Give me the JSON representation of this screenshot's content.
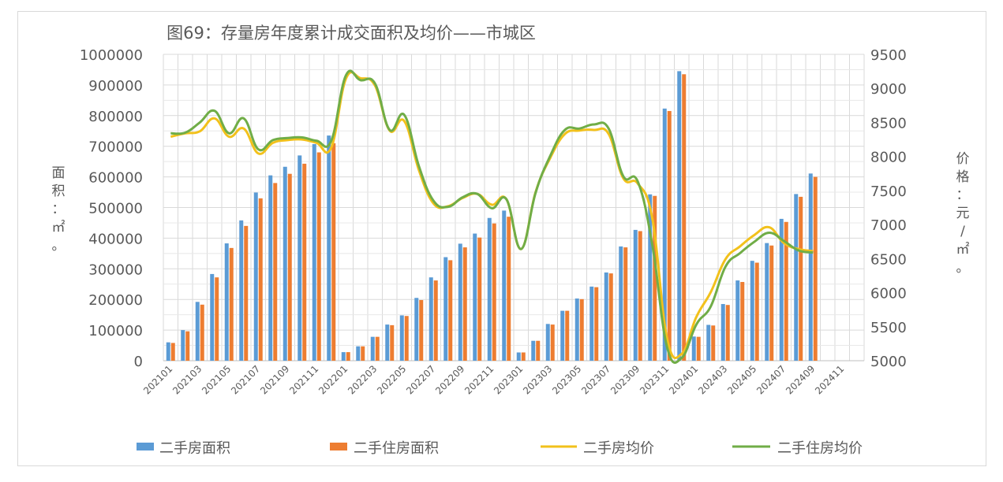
{
  "chart_data": {
    "type": "bar",
    "title": "图69：存量房年度累计成交面积及均价——市城区",
    "ylabel": "面积：㎡。",
    "y2label": "价格：元/㎡。",
    "ylim": [
      0,
      1000000
    ],
    "y2lim": [
      5000,
      9500
    ],
    "yticks": [
      "0",
      "100000",
      "200000",
      "300000",
      "400000",
      "500000",
      "600000",
      "700000",
      "800000",
      "900000",
      "1000000"
    ],
    "y2ticks": [
      "5000",
      "5500",
      "6000",
      "6500",
      "7000",
      "7500",
      "8000",
      "8500",
      "9000",
      "9500"
    ],
    "xtick_labels": [
      "202101",
      "202103",
      "202105",
      "202107",
      "202109",
      "202111",
      "202201",
      "202203",
      "202205",
      "202207",
      "202209",
      "202211",
      "202301",
      "202303",
      "202305",
      "202307",
      "202309",
      "202311",
      "202401",
      "202403",
      "202405",
      "202407",
      "202409",
      "202411"
    ],
    "categories": [
      "202101",
      "202102",
      "202103",
      "202104",
      "202105",
      "202106",
      "202107",
      "202108",
      "202109",
      "202110",
      "202111",
      "202112",
      "202201",
      "202202",
      "202203",
      "202204",
      "202205",
      "202206",
      "202207",
      "202208",
      "202209",
      "202210",
      "202211",
      "202212",
      "202301",
      "202302",
      "202303",
      "202304",
      "202305",
      "202306",
      "202307",
      "202308",
      "202309",
      "202310",
      "202311",
      "202312",
      "202401",
      "202402",
      "202403",
      "202404",
      "202405",
      "202406",
      "202407",
      "202408",
      "202409",
      "202410",
      "202411",
      "202412"
    ],
    "grid": true,
    "legend": "bottom",
    "colors": {
      "bar1": "#5b9bd5",
      "bar2": "#ed7d31",
      "line1": "#f2c11b",
      "line2": "#70ad47"
    },
    "series": [
      {
        "name": "二手房面积",
        "type": "bar",
        "axis": "left",
        "values": [
          60000,
          100000,
          192000,
          283000,
          383000,
          458000,
          549000,
          605000,
          633000,
          670000,
          707000,
          735000,
          28000,
          47000,
          78000,
          118000,
          148000,
          205000,
          272000,
          338000,
          382000,
          415000,
          466000,
          490000,
          27000,
          65000,
          120000,
          163000,
          203000,
          242000,
          288000,
          373000,
          427000,
          543000,
          823000,
          945000,
          79000,
          117000,
          185000,
          262000,
          326000,
          384000,
          463000,
          544000,
          611000,
          null,
          null,
          null
        ]
      },
      {
        "name": "二手住房面积",
        "type": "bar",
        "axis": "left",
        "values": [
          58000,
          96000,
          183000,
          272000,
          368000,
          440000,
          530000,
          580000,
          610000,
          643000,
          680000,
          710000,
          28000,
          47000,
          78000,
          116000,
          146000,
          198000,
          262000,
          328000,
          370000,
          402000,
          448000,
          470000,
          27000,
          65000,
          118000,
          163000,
          201000,
          240000,
          285000,
          370000,
          423000,
          538000,
          815000,
          935000,
          78000,
          115000,
          182000,
          257000,
          320000,
          376000,
          453000,
          535000,
          600000,
          null,
          null,
          null
        ]
      },
      {
        "name": "二手房均价",
        "type": "line",
        "axis": "right",
        "values": [
          8290,
          8340,
          8370,
          8560,
          8290,
          8410,
          8045,
          8200,
          8240,
          8250,
          8200,
          8130,
          9140,
          9150,
          9040,
          8380,
          8520,
          7800,
          7310,
          7270,
          7390,
          7450,
          7290,
          7370,
          6640,
          7480,
          7980,
          8330,
          8380,
          8390,
          8330,
          7680,
          7600,
          7080,
          5330,
          5100,
          5640,
          6010,
          6490,
          6680,
          6850,
          6960,
          6730,
          6640,
          6610,
          null,
          null,
          null
        ]
      },
      {
        "name": "二手住房均价",
        "type": "line",
        "axis": "right",
        "values": [
          8340,
          8350,
          8500,
          8670,
          8340,
          8560,
          8105,
          8240,
          8270,
          8280,
          8230,
          8230,
          9190,
          9120,
          9070,
          8390,
          8610,
          7860,
          7350,
          7260,
          7400,
          7450,
          7240,
          7370,
          6640,
          7470,
          8010,
          8390,
          8410,
          8470,
          8410,
          7710,
          7630,
          6690,
          5200,
          5040,
          5530,
          5800,
          6380,
          6580,
          6750,
          6880,
          6760,
          6620,
          6590,
          null,
          null,
          null
        ]
      }
    ]
  }
}
